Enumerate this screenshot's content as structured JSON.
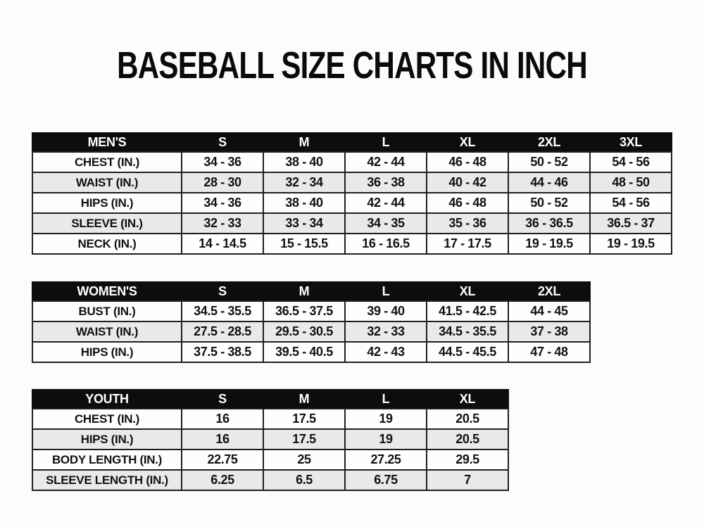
{
  "title": "BASEBALL SIZE CHARTS IN INCH",
  "tables": [
    {
      "name": "mens",
      "columns": [
        "MEN'S",
        "S",
        "M",
        "L",
        "XL",
        "2XL",
        "3XL"
      ],
      "rows": [
        [
          "CHEST (IN.)",
          "34 - 36",
          "38 - 40",
          "42 - 44",
          "46 - 48",
          "50 - 52",
          "54 - 56"
        ],
        [
          "WAIST (IN.)",
          "28 - 30",
          "32 - 34",
          "36 - 38",
          "40 - 42",
          "44 - 46",
          "48 - 50"
        ],
        [
          "HIPS (IN.)",
          "34 - 36",
          "38 - 40",
          "42 - 44",
          "46 - 48",
          "50 - 52",
          "54 - 56"
        ],
        [
          "SLEEVE (IN.)",
          "32 - 33",
          "33 - 34",
          "34 - 35",
          "35 - 36",
          "36 - 36.5",
          "36.5 - 37"
        ],
        [
          "NECK (IN.)",
          "14 - 14.5",
          "15 - 15.5",
          "16 - 16.5",
          "17 - 17.5",
          "19 - 19.5",
          "19 - 19.5"
        ]
      ]
    },
    {
      "name": "womens",
      "columns": [
        "WOMEN'S",
        "S",
        "M",
        "L",
        "XL",
        "2XL"
      ],
      "rows": [
        [
          "BUST (IN.)",
          "34.5 - 35.5",
          "36.5 - 37.5",
          "39 - 40",
          "41.5 - 42.5",
          "44 - 45"
        ],
        [
          "WAIST (IN.)",
          "27.5 - 28.5",
          "29.5 - 30.5",
          "32 - 33",
          "34.5 - 35.5",
          "37 - 38"
        ],
        [
          "HIPS (IN.)",
          "37.5 - 38.5",
          "39.5 - 40.5",
          "42 - 43",
          "44.5 - 45.5",
          "47 - 48"
        ]
      ]
    },
    {
      "name": "youth",
      "columns": [
        "YOUTH",
        "S",
        "M",
        "L",
        "XL"
      ],
      "rows": [
        [
          "CHEST (IN.)",
          "16",
          "17.5",
          "19",
          "20.5"
        ],
        [
          "HIPS (IN.)",
          "16",
          "17.5",
          "19",
          "20.5"
        ],
        [
          "BODY LENGTH (IN.)",
          "22.75",
          "25",
          "27.25",
          "29.5"
        ],
        [
          "SLEEVE LENGTH (IN.)",
          "6.25",
          "6.5",
          "6.75",
          "7"
        ]
      ]
    }
  ],
  "colors": {
    "header_bg": "#0d0d0d",
    "header_text": "#ffffff",
    "row_bg": "#fefefe",
    "row_alt_bg": "#e9e9e9",
    "border": "#1f1f1f",
    "text": "#111111",
    "page_bg": "#fcfcfc"
  }
}
